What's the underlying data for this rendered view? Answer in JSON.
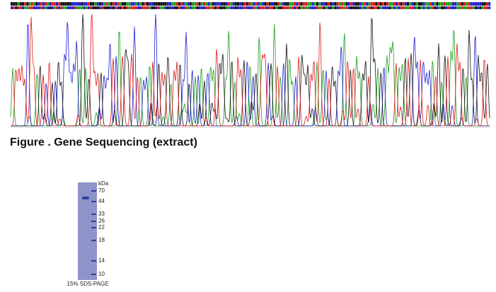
{
  "caption": "Figure . Gene Sequencing (extract)",
  "gel": {
    "unit": "kDa",
    "ladder": [
      70,
      44,
      33,
      26,
      22,
      18,
      14,
      10
    ],
    "footer": "15% SDS-PAGE"
  }
}
